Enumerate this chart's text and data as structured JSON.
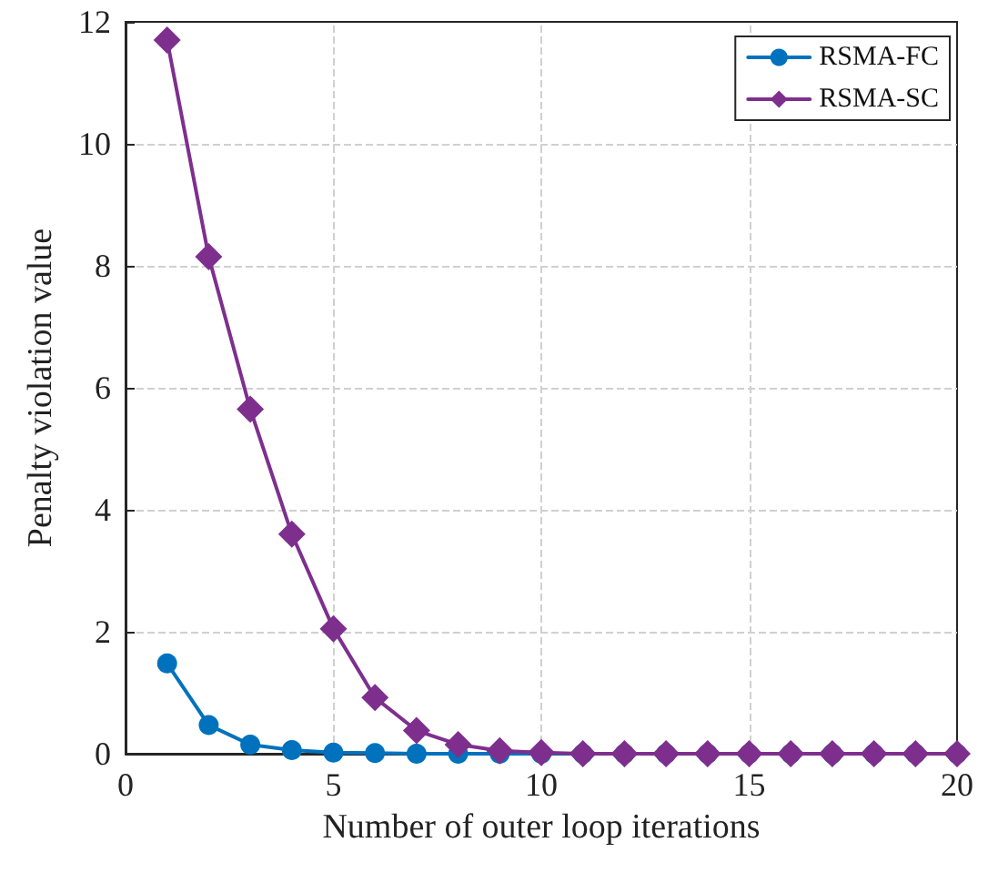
{
  "chart_data": {
    "type": "line",
    "xlabel": "Number of outer loop iterations",
    "ylabel": "Penalty violation value",
    "x": [
      1,
      2,
      3,
      4,
      5,
      6,
      7,
      8,
      9,
      10,
      11,
      12,
      13,
      14,
      15,
      16,
      17,
      18,
      19,
      20
    ],
    "series": [
      {
        "name": "RSMA-FC",
        "color": "#0072bd",
        "marker": "circle",
        "values": [
          1.48,
          0.47,
          0.15,
          0.06,
          0.02,
          0.01,
          0,
          0,
          0,
          0,
          0,
          0,
          0,
          0,
          0,
          0,
          0,
          0,
          0,
          0
        ]
      },
      {
        "name": "RSMA-SC",
        "color": "#7e2f8e",
        "marker": "diamond",
        "values": [
          11.7,
          8.15,
          5.65,
          3.6,
          2.05,
          0.92,
          0.38,
          0.15,
          0.05,
          0.02,
          0,
          0,
          0,
          0,
          0,
          0,
          0,
          0,
          0,
          0
        ]
      }
    ],
    "xlim": [
      0,
      20
    ],
    "xticks": [
      0,
      5,
      10,
      15,
      20
    ],
    "ylim": [
      0,
      12
    ],
    "yticks": [
      0,
      2,
      4,
      6,
      8,
      10,
      12
    ],
    "grid": true,
    "legend": "top right",
    "line_style": "solid"
  }
}
